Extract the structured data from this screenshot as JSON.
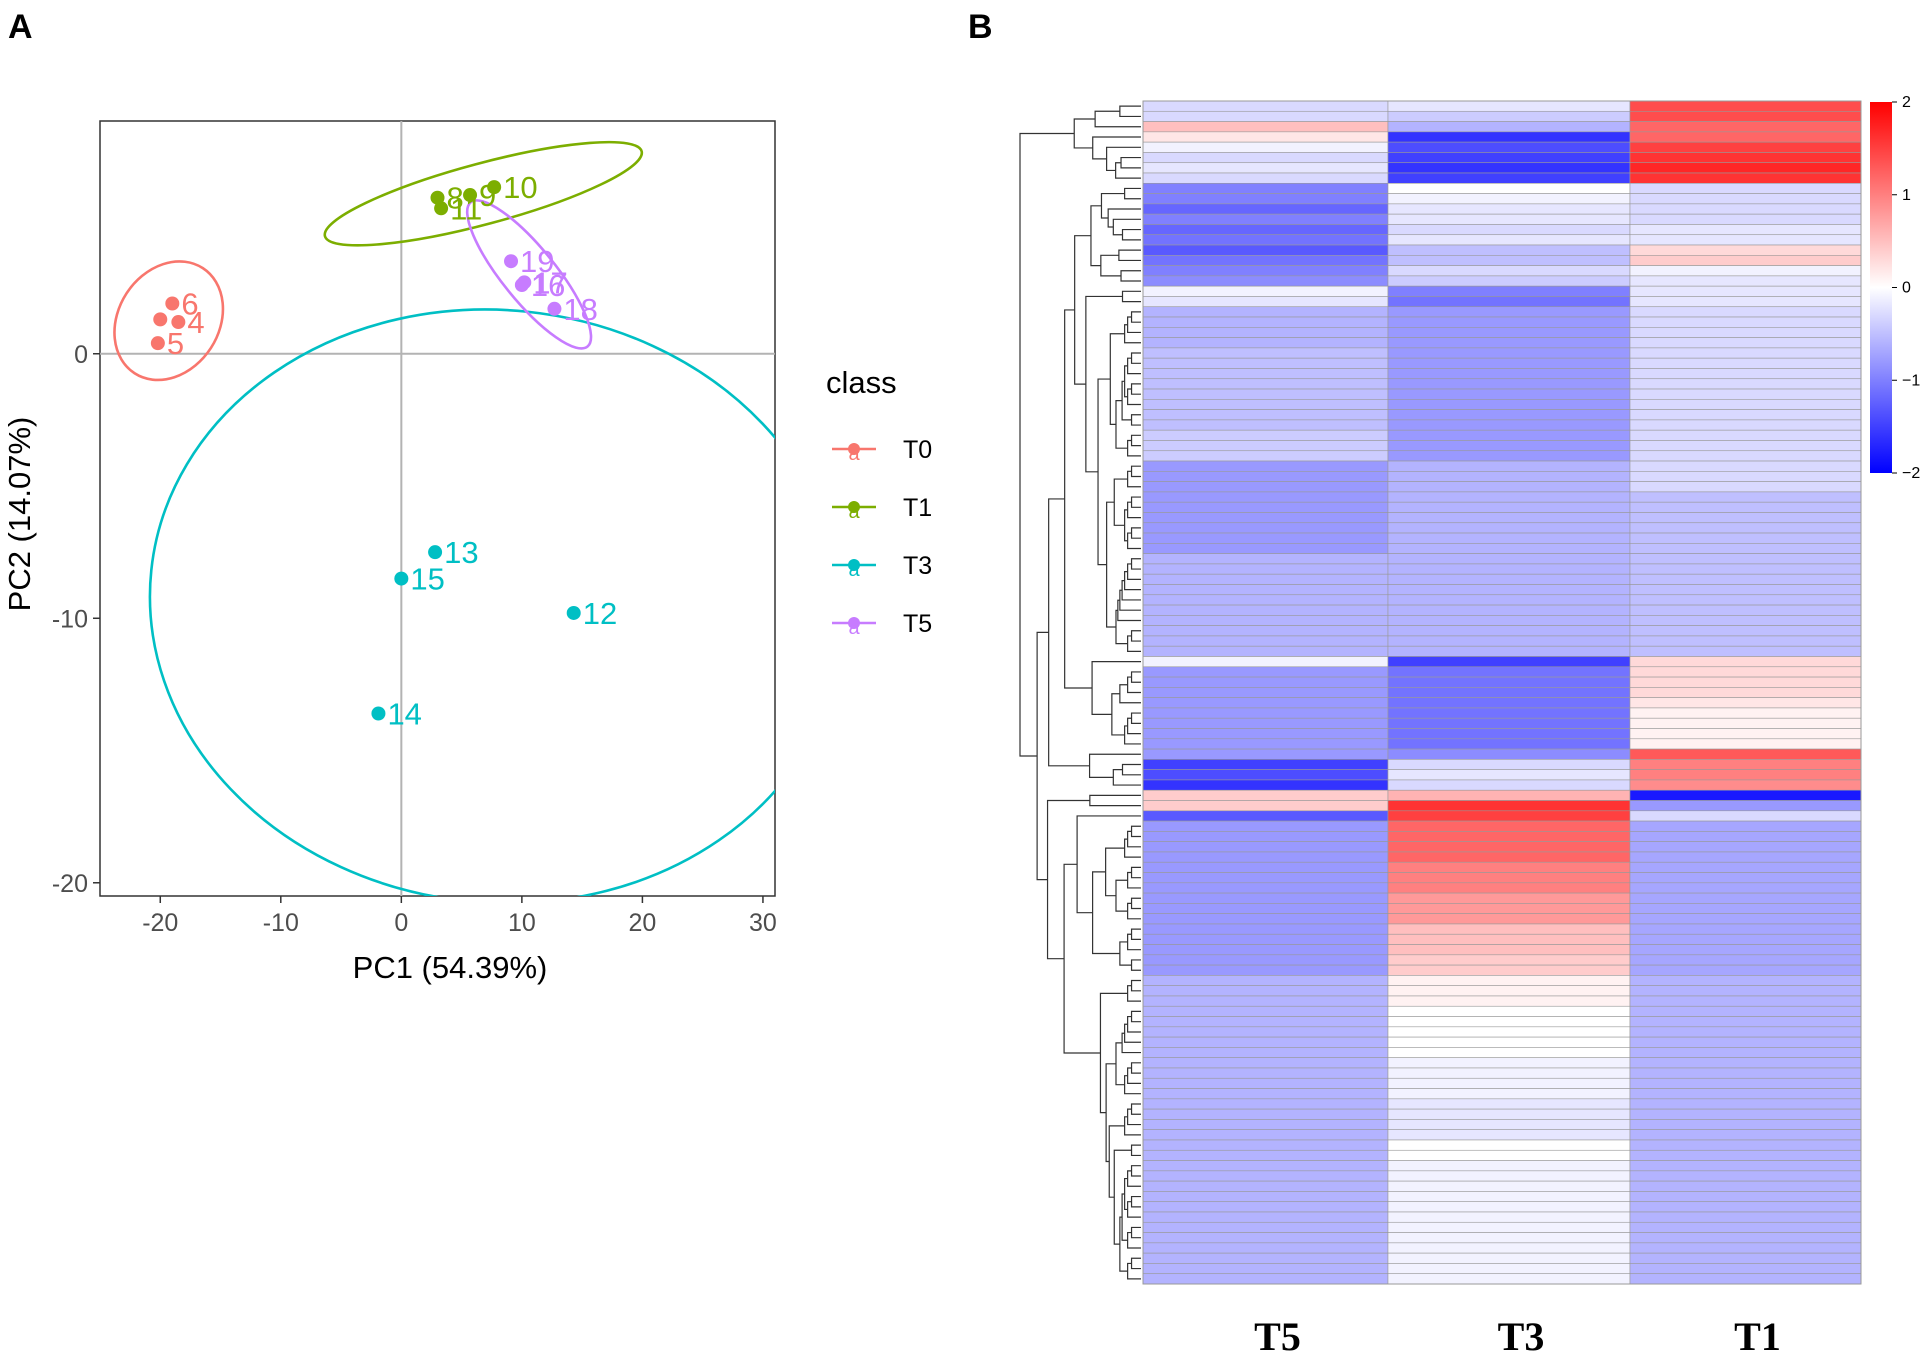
{
  "panels": {
    "a": "A",
    "b": "B"
  },
  "chart_data": [
    {
      "type": "scatter",
      "panel": "A",
      "title": "",
      "xlabel": "PC1 (54.39%)",
      "ylabel": "PC2 (14.07%)",
      "xlim": [
        -25,
        31
      ],
      "ylim": [
        -20.5,
        8.8
      ],
      "xticks": [
        -20,
        -10,
        0,
        10,
        20,
        30
      ],
      "yticks": [
        0,
        -10,
        -20
      ],
      "legend_title": "class",
      "legend_glyph": "a",
      "series": [
        {
          "name": "T0",
          "color": "#f8766d",
          "points": [
            {
              "label": "6",
              "x": -19,
              "y": 1.9
            },
            {
              "label": "4",
              "x": -18.5,
              "y": 1.2
            },
            {
              "label": "",
              "x": -20,
              "y": 1.3
            },
            {
              "label": "5",
              "x": -20.2,
              "y": 0.4
            }
          ],
          "ellipse": {
            "cx": -19.3,
            "cy": 1.25,
            "rx": 5.2,
            "ry": 1.9,
            "angle": -57
          }
        },
        {
          "name": "T1",
          "color": "#7cae00",
          "points": [
            {
              "label": "8",
              "x": 3,
              "y": 5.9
            },
            {
              "label": "9",
              "x": 5.7,
              "y": 6.0
            },
            {
              "label": "10",
              "x": 7.7,
              "y": 6.3
            },
            {
              "label": "11",
              "x": 3.3,
              "y": 5.5
            }
          ],
          "ellipse": {
            "cx": 6.8,
            "cy": 6.05,
            "rx": 13.6,
            "ry": 1.15,
            "angle": -15
          }
        },
        {
          "name": "T3",
          "color": "#00bfc4",
          "points": [
            {
              "label": "13",
              "x": 2.8,
              "y": -7.5
            },
            {
              "label": "15",
              "x": 0,
              "y": -8.5
            },
            {
              "label": "12",
              "x": 14.3,
              "y": -9.8
            },
            {
              "label": "14",
              "x": -1.9,
              "y": -13.6
            }
          ],
          "ellipse": {
            "cx": 7.9,
            "cy": -9.55,
            "rx": 28.8,
            "ry": 11.2,
            "angle": 6
          }
        },
        {
          "name": "T5",
          "color": "#c77cff",
          "points": [
            {
              "label": "19",
              "x": 9.1,
              "y": 3.5
            },
            {
              "label": "17",
              "x": 10.2,
              "y": 2.7
            },
            {
              "label": "16",
              "x": 10,
              "y": 2.6
            },
            {
              "label": "18",
              "x": 12.7,
              "y": 1.7
            }
          ],
          "ellipse": {
            "cx": 10.6,
            "cy": 3.0,
            "rx": 7.7,
            "ry": 1.0,
            "angle": 51
          }
        }
      ]
    },
    {
      "type": "heatmap",
      "panel": "B",
      "columns": [
        "T5",
        "T3",
        "T1"
      ],
      "colorbar": {
        "min": -2,
        "max": 2,
        "ticks": [
          2,
          1,
          0,
          -1,
          -2
        ],
        "tick_labels": [
          "2",
          "1",
          "0",
          "−1",
          "−2"
        ],
        "low": "#0000ff",
        "mid": "#ffffff",
        "high": "#ff0000"
      },
      "rows": [
        [
          -0.3,
          -0.2,
          1.4
        ],
        [
          -0.3,
          -0.4,
          1.4
        ],
        [
          0.5,
          -0.6,
          1.2
        ],
        [
          0.2,
          -1.6,
          1.2
        ],
        [
          -0.1,
          -1.4,
          1.5
        ],
        [
          -0.3,
          -1.5,
          1.6
        ],
        [
          -0.2,
          -1.6,
          1.7
        ],
        [
          -0.3,
          -1.5,
          1.6
        ],
        [
          -1.0,
          0.0,
          -0.3
        ],
        [
          -1.0,
          -0.1,
          -0.3
        ],
        [
          -1.2,
          -0.2,
          -0.3
        ],
        [
          -1.0,
          -0.2,
          -0.3
        ],
        [
          -1.2,
          -0.3,
          -0.2
        ],
        [
          -1.1,
          -0.2,
          -0.2
        ],
        [
          -1.3,
          -0.5,
          0.3
        ],
        [
          -1.1,
          -0.5,
          0.4
        ],
        [
          -1.0,
          -0.3,
          -0.1
        ],
        [
          -0.9,
          -0.4,
          -0.2
        ],
        [
          -0.1,
          -1.0,
          -0.2
        ],
        [
          -0.2,
          -1.1,
          -0.2
        ],
        [
          -0.6,
          -0.8,
          -0.3
        ],
        [
          -0.6,
          -0.8,
          -0.3
        ],
        [
          -0.6,
          -0.8,
          -0.3
        ],
        [
          -0.6,
          -0.8,
          -0.3
        ],
        [
          -0.5,
          -0.8,
          -0.3
        ],
        [
          -0.5,
          -0.8,
          -0.3
        ],
        [
          -0.5,
          -0.8,
          -0.3
        ],
        [
          -0.5,
          -0.8,
          -0.3
        ],
        [
          -0.5,
          -0.8,
          -0.3
        ],
        [
          -0.5,
          -0.8,
          -0.3
        ],
        [
          -0.5,
          -0.8,
          -0.3
        ],
        [
          -0.5,
          -0.8,
          -0.3
        ],
        [
          -0.4,
          -0.8,
          -0.3
        ],
        [
          -0.4,
          -0.8,
          -0.3
        ],
        [
          -0.4,
          -0.8,
          -0.3
        ],
        [
          -0.8,
          -0.6,
          -0.3
        ],
        [
          -0.8,
          -0.6,
          -0.3
        ],
        [
          -0.8,
          -0.6,
          -0.3
        ],
        [
          -0.8,
          -0.6,
          -0.5
        ],
        [
          -0.8,
          -0.6,
          -0.5
        ],
        [
          -0.8,
          -0.6,
          -0.5
        ],
        [
          -0.8,
          -0.6,
          -0.5
        ],
        [
          -0.8,
          -0.6,
          -0.5
        ],
        [
          -0.8,
          -0.6,
          -0.5
        ],
        [
          -0.6,
          -0.6,
          -0.5
        ],
        [
          -0.6,
          -0.6,
          -0.5
        ],
        [
          -0.6,
          -0.6,
          -0.5
        ],
        [
          -0.6,
          -0.6,
          -0.5
        ],
        [
          -0.6,
          -0.6,
          -0.5
        ],
        [
          -0.6,
          -0.6,
          -0.5
        ],
        [
          -0.6,
          -0.6,
          -0.5
        ],
        [
          -0.6,
          -0.6,
          -0.5
        ],
        [
          -0.6,
          -0.6,
          -0.5
        ],
        [
          -0.6,
          -0.6,
          -0.5
        ],
        [
          -0.1,
          -1.5,
          0.3
        ],
        [
          -0.8,
          -1.1,
          0.3
        ],
        [
          -0.8,
          -1.1,
          0.3
        ],
        [
          -0.8,
          -1.1,
          0.3
        ],
        [
          -0.8,
          -1.1,
          0.2
        ],
        [
          -0.8,
          -1.1,
          0.1
        ],
        [
          -0.8,
          -1.1,
          0.1
        ],
        [
          -0.8,
          -1.1,
          0.1
        ],
        [
          -0.8,
          -1.1,
          0.1
        ],
        [
          -0.8,
          -0.9,
          1.3
        ],
        [
          -1.5,
          -0.3,
          1.0
        ],
        [
          -1.4,
          -0.2,
          1.0
        ],
        [
          -1.6,
          -0.3,
          0.9
        ],
        [
          0.4,
          0.6,
          -1.8
        ],
        [
          0.4,
          1.6,
          -0.8
        ],
        [
          -1.3,
          1.5,
          -0.3
        ],
        [
          -0.8,
          1.2,
          -0.7
        ],
        [
          -0.8,
          1.2,
          -0.7
        ],
        [
          -0.8,
          1.2,
          -0.7
        ],
        [
          -0.8,
          1.2,
          -0.7
        ],
        [
          -0.8,
          1.0,
          -0.7
        ],
        [
          -0.8,
          1.0,
          -0.7
        ],
        [
          -0.8,
          1.0,
          -0.7
        ],
        [
          -0.8,
          0.8,
          -0.7
        ],
        [
          -0.8,
          0.8,
          -0.7
        ],
        [
          -0.8,
          0.8,
          -0.7
        ],
        [
          -0.8,
          0.5,
          -0.7
        ],
        [
          -0.8,
          0.5,
          -0.7
        ],
        [
          -0.8,
          0.5,
          -0.7
        ],
        [
          -0.8,
          0.4,
          -0.7
        ],
        [
          -0.8,
          0.4,
          -0.7
        ],
        [
          -0.6,
          0.1,
          -0.6
        ],
        [
          -0.6,
          0.1,
          -0.6
        ],
        [
          -0.6,
          0.1,
          -0.6
        ],
        [
          -0.6,
          0.0,
          -0.6
        ],
        [
          -0.6,
          0.0,
          -0.6
        ],
        [
          -0.6,
          0.0,
          -0.6
        ],
        [
          -0.6,
          0.0,
          -0.6
        ],
        [
          -0.6,
          0.0,
          -0.6
        ],
        [
          -0.6,
          -0.1,
          -0.6
        ],
        [
          -0.6,
          -0.1,
          -0.6
        ],
        [
          -0.6,
          -0.1,
          -0.6
        ],
        [
          -0.6,
          -0.1,
          -0.6
        ],
        [
          -0.6,
          -0.2,
          -0.6
        ],
        [
          -0.6,
          -0.2,
          -0.6
        ],
        [
          -0.6,
          -0.2,
          -0.6
        ],
        [
          -0.6,
          -0.2,
          -0.6
        ],
        [
          -0.6,
          0.0,
          -0.6
        ],
        [
          -0.6,
          0.0,
          -0.6
        ],
        [
          -0.6,
          -0.1,
          -0.6
        ],
        [
          -0.6,
          -0.1,
          -0.6
        ],
        [
          -0.6,
          -0.1,
          -0.6
        ],
        [
          -0.6,
          -0.1,
          -0.6
        ],
        [
          -0.6,
          -0.1,
          -0.6
        ],
        [
          -0.6,
          -0.1,
          -0.6
        ],
        [
          -0.6,
          -0.1,
          -0.6
        ],
        [
          -0.6,
          -0.1,
          -0.6
        ],
        [
          -0.6,
          -0.1,
          -0.6
        ],
        [
          -0.6,
          -0.1,
          -0.6
        ],
        [
          -0.6,
          -0.1,
          -0.6
        ],
        [
          -0.6,
          -0.1,
          -0.6
        ]
      ]
    }
  ]
}
